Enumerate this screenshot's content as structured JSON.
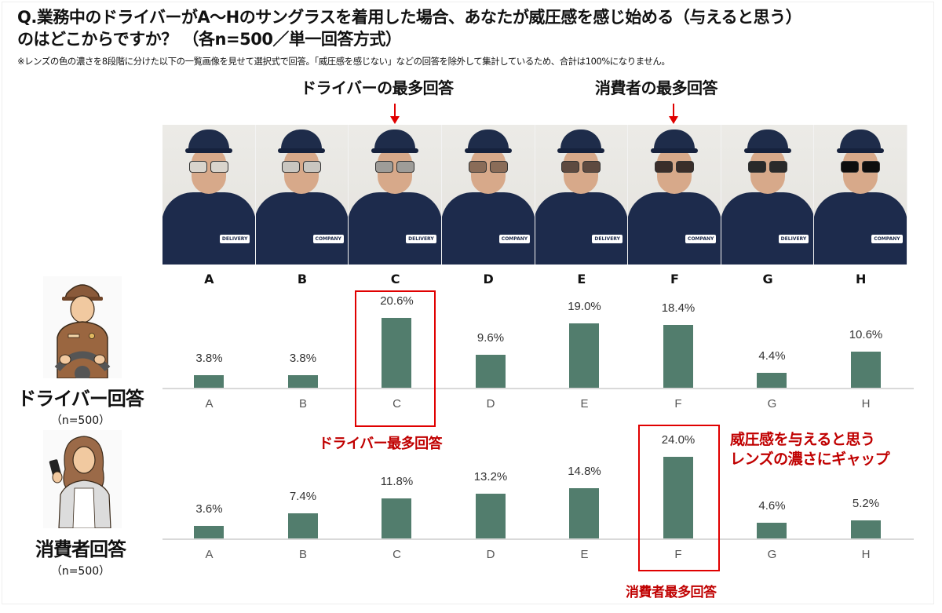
{
  "question": {
    "line1": "Q.業務中のドライバーがA～Hのサングラスを着用した場合、あなたが威圧感を感じ始める（与えると思う）",
    "line2": "のはどこからですか？ （各n=500／単一回答方式）",
    "note": "※レンズの色の濃さを8段階に分けた以下の一覧画像を見せて選択式で回答。「威圧感を感じない」などの回答を除外して集計しているため、合計は100%になりません。"
  },
  "top_callouts": {
    "driver": "ドライバーの最多回答",
    "consumer": "消費者の最多回答"
  },
  "photos": [
    {
      "label": "A",
      "badge": "DELIVERY",
      "lens": "#d9d4cc"
    },
    {
      "label": "B",
      "badge": "COMPANY",
      "lens": "#c9c6c0"
    },
    {
      "label": "C",
      "badge": "DELIVERY",
      "lens": "#9e9c98"
    },
    {
      "label": "D",
      "badge": "COMPANY",
      "lens": "#8a6c58"
    },
    {
      "label": "E",
      "badge": "DELIVERY",
      "lens": "#5e4a40"
    },
    {
      "label": "F",
      "badge": "COMPANY",
      "lens": "#3a2e2a"
    },
    {
      "label": "G",
      "badge": "DELIVERY",
      "lens": "#2a2a2a"
    },
    {
      "label": "H",
      "badge": "COMPANY",
      "lens": "#0d0d0d"
    }
  ],
  "groups": {
    "driver": {
      "title": "ドライバー回答",
      "n": "（n=500）"
    },
    "consumer": {
      "title": "消費者回答",
      "n": "（n=500）"
    }
  },
  "annotations": {
    "driver_top": "ドライバー最多回答",
    "consumer_top": "消費者最多回答",
    "gap_line1": "威圧感を与えると思う",
    "gap_line2": "レンズの濃さにギャップ"
  },
  "colors": {
    "bar": "#527d6d",
    "highlight": "#e00000",
    "annotation": "#c00000"
  },
  "chart_data": [
    {
      "type": "bar",
      "title": "ドライバー回答 (n=500)",
      "categories": [
        "A",
        "B",
        "C",
        "D",
        "E",
        "F",
        "G",
        "H"
      ],
      "values": [
        3.8,
        3.8,
        20.6,
        9.6,
        19.0,
        18.4,
        4.4,
        10.6
      ],
      "labels": [
        "3.8%",
        "3.8%",
        "20.6%",
        "9.6%",
        "19.0%",
        "18.4%",
        "4.4%",
        "10.6%"
      ],
      "highlight": "C",
      "xlabel": "",
      "ylabel": "",
      "grid": false
    },
    {
      "type": "bar",
      "title": "消費者回答 (n=500)",
      "categories": [
        "A",
        "B",
        "C",
        "D",
        "E",
        "F",
        "G",
        "H"
      ],
      "values": [
        3.6,
        7.4,
        11.8,
        13.2,
        14.8,
        24.0,
        4.6,
        5.2
      ],
      "labels": [
        "3.6%",
        "7.4%",
        "11.8%",
        "13.2%",
        "14.8%",
        "24.0%",
        "4.6%",
        "5.2%"
      ],
      "highlight": "F",
      "xlabel": "",
      "ylabel": "",
      "grid": false
    }
  ]
}
